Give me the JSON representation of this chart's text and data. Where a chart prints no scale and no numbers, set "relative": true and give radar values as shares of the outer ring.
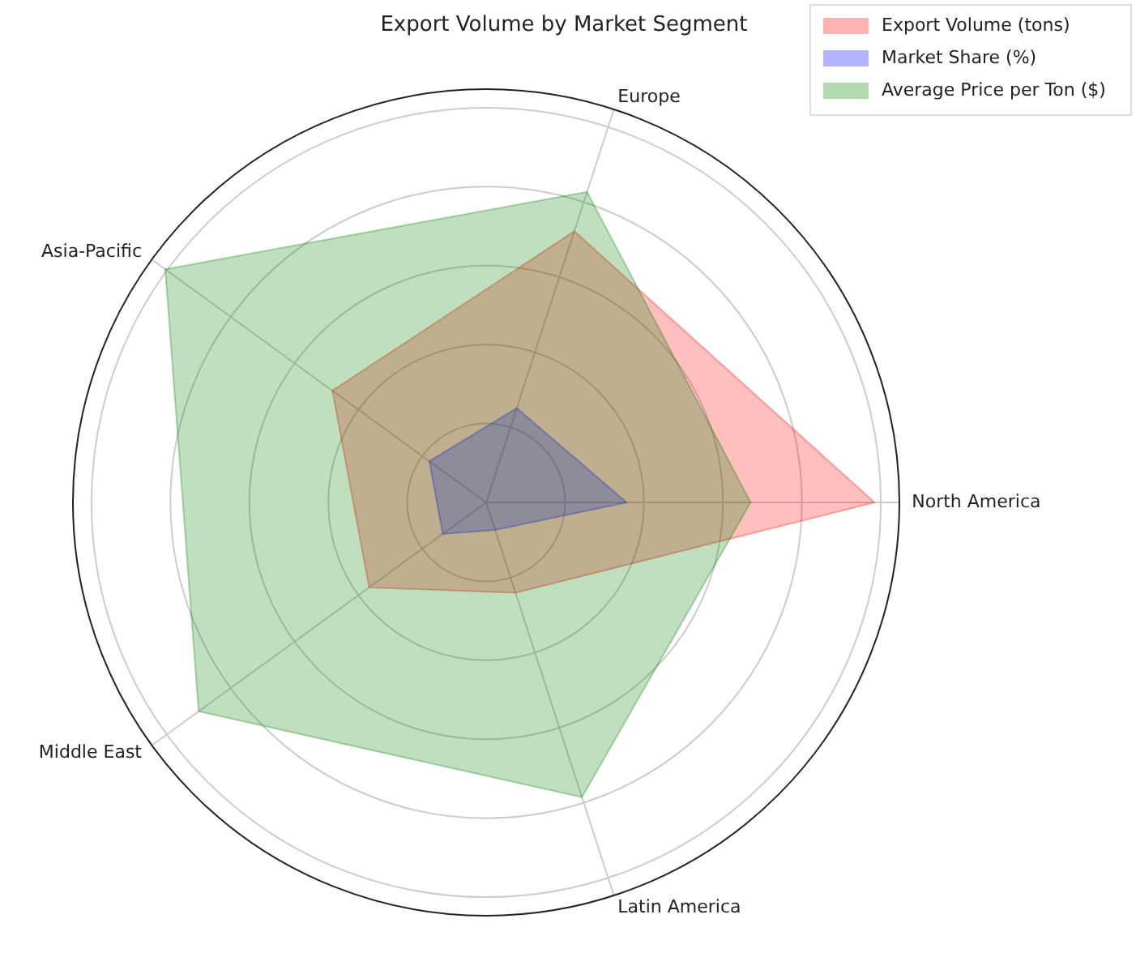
{
  "chart_data": {
    "type": "radar",
    "title": "Export Volume by Market Segment",
    "relative": true,
    "grid": true,
    "legend": "top right",
    "categories": [
      "Europe",
      "North America",
      "Latin America",
      "Middle East",
      "Asia-Pacific"
    ],
    "series": [
      {
        "name": "Export Volume (tons)",
        "color": "#ff0000",
        "values": [
          0.69,
          0.94,
          0.23,
          0.35,
          0.46
        ]
      },
      {
        "name": "Market Share (%)",
        "color": "#0000ff",
        "values": [
          0.24,
          0.34,
          0.07,
          0.13,
          0.17
        ]
      },
      {
        "name": "Average Price per Ton ($)",
        "color": "#008000",
        "values": [
          0.79,
          0.64,
          0.75,
          0.86,
          0.96
        ]
      }
    ]
  }
}
